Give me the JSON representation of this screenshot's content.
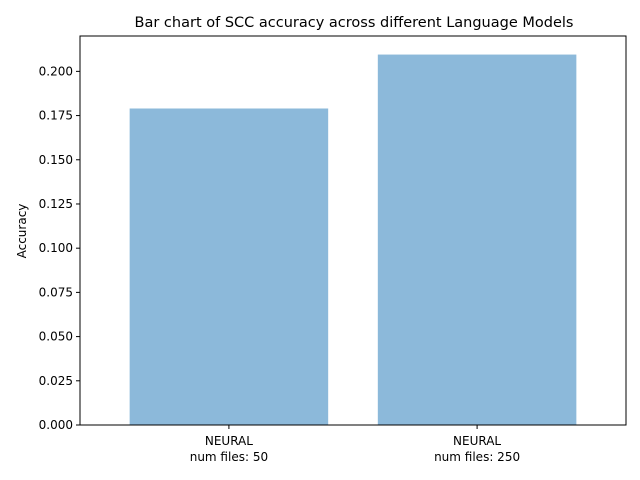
{
  "chart_data": {
    "type": "bar",
    "title": "Bar chart of SCC accuracy across different Language Models",
    "xlabel": "",
    "ylabel": "Accuracy",
    "categories": [
      [
        "NEURAL",
        "num files: 50"
      ],
      [
        "NEURAL",
        "num files: 250"
      ]
    ],
    "values": [
      0.179,
      0.2095
    ],
    "ylim": [
      0,
      0.22
    ],
    "yticks": [
      "0.000",
      "0.025",
      "0.050",
      "0.075",
      "0.100",
      "0.125",
      "0.150",
      "0.175",
      "0.200"
    ],
    "bar_color": "#8cb9da",
    "grid": false,
    "legend": false
  }
}
